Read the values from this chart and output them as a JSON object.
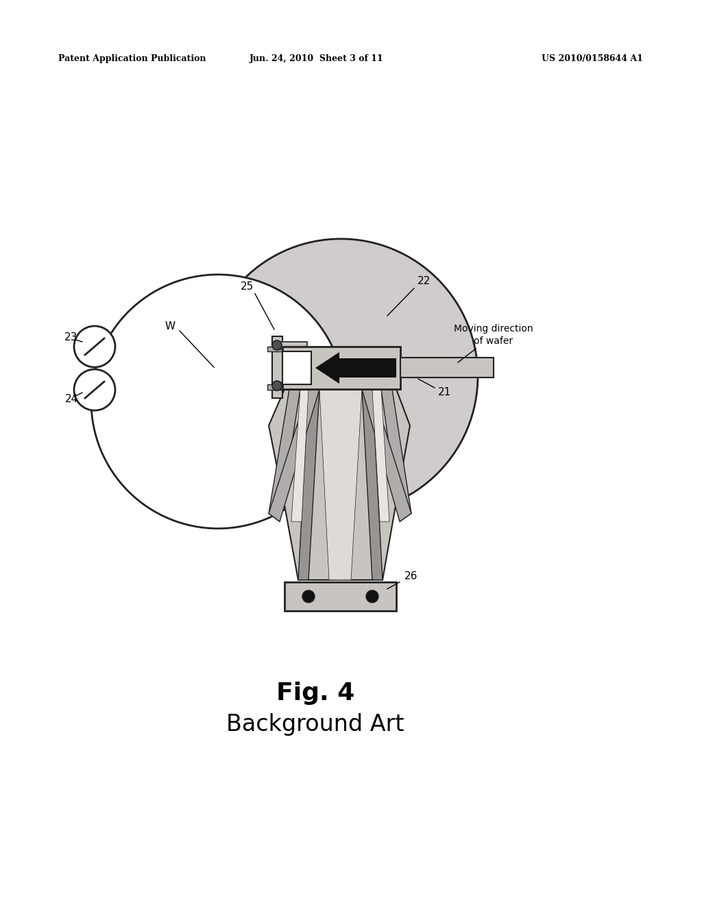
{
  "background_color": "#ffffff",
  "header_left": "Patent Application Publication",
  "header_center": "Jun. 24, 2010  Sheet 3 of 11",
  "header_right": "US 2010/0158644 A1",
  "fig_label": "Fig. 4",
  "fig_sublabel": "Background Art",
  "stroke": "#222222",
  "fill_disk": "#d0cccc",
  "fill_arm_light": "#c8c4c0",
  "fill_arm_medium": "#b0acac",
  "fill_arm_dark": "#989494",
  "fill_white": "#ffffff"
}
